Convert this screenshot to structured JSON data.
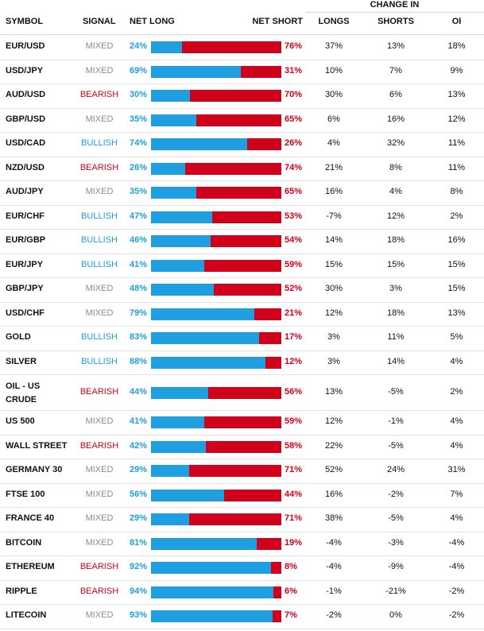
{
  "header": {
    "change_in": "CHANGE IN",
    "symbol": "SYMBOL",
    "signal": "SIGNAL",
    "net_long": "NET LONG",
    "net_short": "NET SHORT",
    "longs": "LONGS",
    "shorts": "SHORTS",
    "oi": "OI"
  },
  "colors": {
    "long": "#1f9ee0",
    "short": "#d0021b",
    "mixed": "#8c8c8c"
  },
  "rows": [
    {
      "symbol": "EUR/USD",
      "signal": "MIXED",
      "net_long": "24%",
      "net_short": "76%",
      "long_fraction": 0.24,
      "longs": "37%",
      "shorts": "13%",
      "oi": "18%"
    },
    {
      "symbol": "USD/JPY",
      "signal": "MIXED",
      "net_long": "69%",
      "net_short": "31%",
      "long_fraction": 0.69,
      "longs": "10%",
      "shorts": "7%",
      "oi": "9%"
    },
    {
      "symbol": "AUD/USD",
      "signal": "BEARISH",
      "net_long": "30%",
      "net_short": "70%",
      "long_fraction": 0.3,
      "longs": "30%",
      "shorts": "6%",
      "oi": "13%"
    },
    {
      "symbol": "GBP/USD",
      "signal": "MIXED",
      "net_long": "35%",
      "net_short": "65%",
      "long_fraction": 0.35,
      "longs": "6%",
      "shorts": "16%",
      "oi": "12%"
    },
    {
      "symbol": "USD/CAD",
      "signal": "BULLISH",
      "net_long": "74%",
      "net_short": "26%",
      "long_fraction": 0.74,
      "longs": "4%",
      "shorts": "32%",
      "oi": "11%"
    },
    {
      "symbol": "NZD/USD",
      "signal": "BEARISH",
      "net_long": "26%",
      "net_short": "74%",
      "long_fraction": 0.26,
      "longs": "21%",
      "shorts": "8%",
      "oi": "11%"
    },
    {
      "symbol": "AUD/JPY",
      "signal": "MIXED",
      "net_long": "35%",
      "net_short": "65%",
      "long_fraction": 0.35,
      "longs": "16%",
      "shorts": "4%",
      "oi": "8%"
    },
    {
      "symbol": "EUR/CHF",
      "signal": "BULLISH",
      "net_long": "47%",
      "net_short": "53%",
      "long_fraction": 0.47,
      "longs": "-7%",
      "shorts": "12%",
      "oi": "2%"
    },
    {
      "symbol": "EUR/GBP",
      "signal": "BULLISH",
      "net_long": "46%",
      "net_short": "54%",
      "long_fraction": 0.46,
      "longs": "14%",
      "shorts": "18%",
      "oi": "16%"
    },
    {
      "symbol": "EUR/JPY",
      "signal": "BULLISH",
      "net_long": "41%",
      "net_short": "59%",
      "long_fraction": 0.41,
      "longs": "15%",
      "shorts": "15%",
      "oi": "15%"
    },
    {
      "symbol": "GBP/JPY",
      "signal": "MIXED",
      "net_long": "48%",
      "net_short": "52%",
      "long_fraction": 0.48,
      "longs": "30%",
      "shorts": "3%",
      "oi": "15%"
    },
    {
      "symbol": "USD/CHF",
      "signal": "MIXED",
      "net_long": "79%",
      "net_short": "21%",
      "long_fraction": 0.79,
      "longs": "12%",
      "shorts": "18%",
      "oi": "13%"
    },
    {
      "symbol": "GOLD",
      "signal": "BULLISH",
      "net_long": "83%",
      "net_short": "17%",
      "long_fraction": 0.83,
      "longs": "3%",
      "shorts": "11%",
      "oi": "5%"
    },
    {
      "symbol": "SILVER",
      "signal": "BULLISH",
      "net_long": "88%",
      "net_short": "12%",
      "long_fraction": 0.88,
      "longs": "3%",
      "shorts": "14%",
      "oi": "4%"
    },
    {
      "symbol": "OIL - US CRUDE",
      "symbol_line1": "OIL - US",
      "symbol_line2": "CRUDE",
      "signal": "BEARISH",
      "net_long": "44%",
      "net_short": "56%",
      "long_fraction": 0.44,
      "longs": "13%",
      "shorts": "-5%",
      "oi": "2%"
    },
    {
      "symbol": "US 500",
      "signal": "MIXED",
      "net_long": "41%",
      "net_short": "59%",
      "long_fraction": 0.41,
      "longs": "12%",
      "shorts": "-1%",
      "oi": "4%"
    },
    {
      "symbol": "WALL STREET",
      "signal": "BEARISH",
      "net_long": "42%",
      "net_short": "58%",
      "long_fraction": 0.42,
      "longs": "22%",
      "shorts": "-5%",
      "oi": "4%"
    },
    {
      "symbol": "GERMANY 30",
      "signal": "MIXED",
      "net_long": "29%",
      "net_short": "71%",
      "long_fraction": 0.29,
      "longs": "52%",
      "shorts": "24%",
      "oi": "31%"
    },
    {
      "symbol": "FTSE 100",
      "signal": "MIXED",
      "net_long": "56%",
      "net_short": "44%",
      "long_fraction": 0.56,
      "longs": "16%",
      "shorts": "-2%",
      "oi": "7%"
    },
    {
      "symbol": "FRANCE 40",
      "signal": "MIXED",
      "net_long": "29%",
      "net_short": "71%",
      "long_fraction": 0.29,
      "longs": "38%",
      "shorts": "-5%",
      "oi": "4%"
    },
    {
      "symbol": "BITCOIN",
      "signal": "MIXED",
      "net_long": "81%",
      "net_short": "19%",
      "long_fraction": 0.81,
      "longs": "-4%",
      "shorts": "-3%",
      "oi": "-4%"
    },
    {
      "symbol": "ETHEREUM",
      "signal": "BEARISH",
      "net_long": "92%",
      "net_short": "8%",
      "long_fraction": 0.92,
      "longs": "-4%",
      "shorts": "-9%",
      "oi": "-4%"
    },
    {
      "symbol": "RIPPLE",
      "signal": "BEARISH",
      "net_long": "94%",
      "net_short": "6%",
      "long_fraction": 0.94,
      "longs": "-1%",
      "shorts": "-21%",
      "oi": "-2%"
    },
    {
      "symbol": "LITECOIN",
      "signal": "MIXED",
      "net_long": "93%",
      "net_short": "7%",
      "long_fraction": 0.93,
      "longs": "-2%",
      "shorts": "0%",
      "oi": "-2%"
    }
  ]
}
